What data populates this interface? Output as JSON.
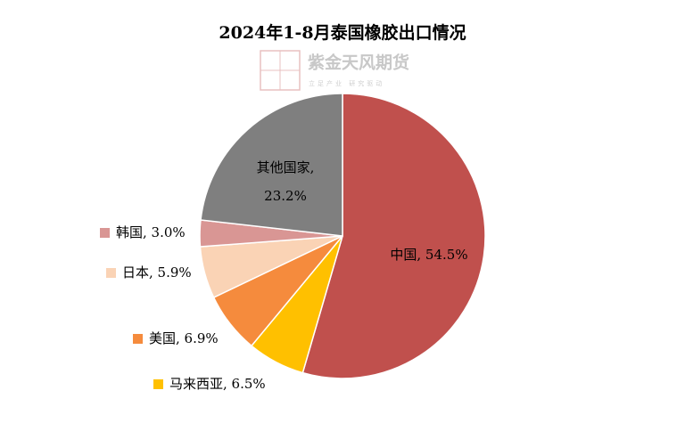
{
  "chart_data": {
    "type": "pie",
    "title": "2024年1-8月泰国橡胶出口情况",
    "watermark": "紫金天风期货",
    "watermark_slogan": "立足产业 研究驱动",
    "values": [
      54.5,
      6.5,
      6.9,
      5.9,
      3.0,
      23.2
    ],
    "value_labels": [
      "中国, 54.5%",
      "马来西亚, 6.5%",
      "美国, 6.9%",
      "日本, 5.9%",
      "韩国, 3.0%",
      "其他国家, 23.2%"
    ],
    "colors": [
      "#c0504d",
      "#ffc000",
      "#f58b3d",
      "#fad3b5",
      "#d99694",
      "#7f7f7f"
    ]
  }
}
